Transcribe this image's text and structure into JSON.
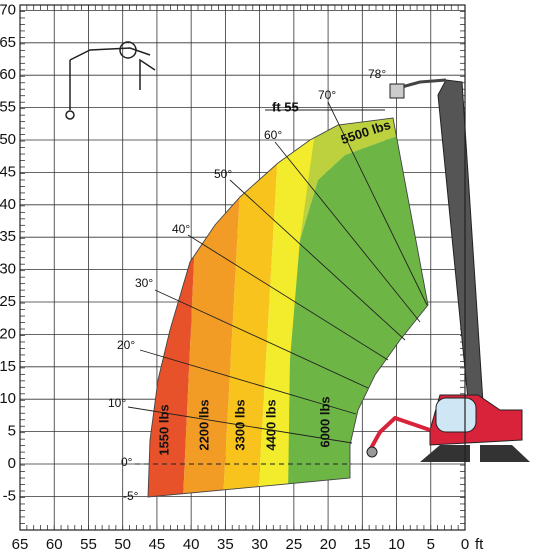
{
  "yticks": [
    70,
    65,
    60,
    55,
    50,
    45,
    40,
    35,
    30,
    25,
    20,
    15,
    10,
    5,
    0,
    -5
  ],
  "xticks": [
    65,
    60,
    55,
    50,
    45,
    40,
    35,
    30,
    25,
    20,
    15,
    10,
    5,
    0
  ],
  "x_unit": "ft",
  "height_label": "ft 55",
  "angle_labels": [
    "-5°",
    "0°",
    "10°",
    "20°",
    "30°",
    "40°",
    "50°",
    "60°",
    "70°",
    "78°"
  ],
  "load_labels": [
    "1550 lbs",
    "2200 lbs",
    "3300 lbs",
    "4400 lbs",
    "6000 lbs",
    "5500 lbs"
  ]
}
